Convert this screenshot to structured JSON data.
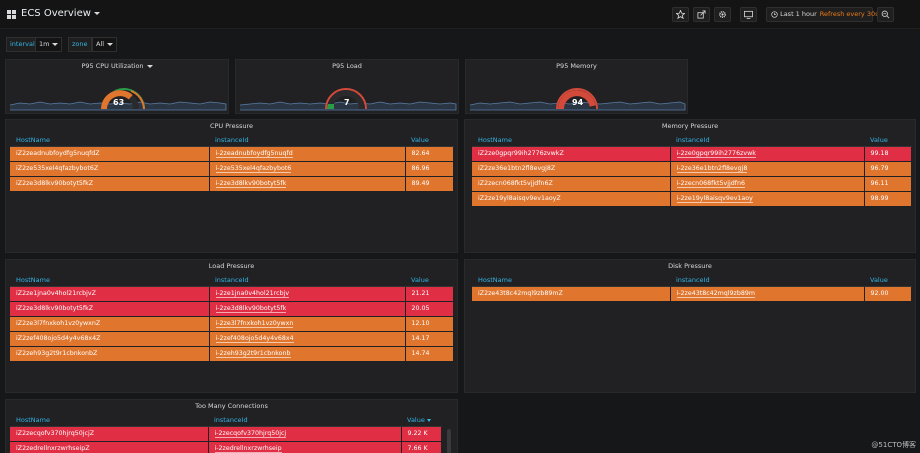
{
  "header": {
    "title": "ECS Overview",
    "time_range": "Last 1 hour",
    "refresh": "Refresh every 30s",
    "icons": [
      "star-icon",
      "share-icon",
      "gear-icon",
      "tv-icon",
      "clock-icon",
      "zoom-out-icon"
    ]
  },
  "variables": [
    {
      "label": "interval",
      "value": "1m"
    },
    {
      "label": "zone",
      "value": "All"
    }
  ],
  "gauges": [
    {
      "title": "P95 CPU Utilization",
      "value": "63",
      "level": 63,
      "color": "#e0752d",
      "has_menu": true
    },
    {
      "title": "P95 Load",
      "value": "7",
      "level": 7,
      "color": "#299c46",
      "has_menu": false
    },
    {
      "title": "P95 Memory",
      "value": "94",
      "level": 94,
      "color": "#d44a3a",
      "has_menu": false
    }
  ],
  "colors": {
    "orange": "#e0752d",
    "red": "#e02f44",
    "header_text": "#33b5e5",
    "panel_bg": "#212124"
  },
  "tables": {
    "cpu": {
      "title": "CPU Pressure",
      "columns": [
        "HostName",
        "instanceId",
        "Value"
      ],
      "rows": [
        {
          "host": "iZ2zeadnubfoydfg5nuqfdZ",
          "id": "i-2zeadnubfoydfg5nuqfd",
          "value": "82.64",
          "status": "orange"
        },
        {
          "host": "iZ2ze535xel4qfazbybot6Z",
          "id": "i-2ze535xel4qfazbybot6",
          "value": "86.96",
          "status": "orange"
        },
        {
          "host": "iZ2ze3d8lkv90botyt5fkZ",
          "id": "i-2ze3d8lkv90botyt5fk",
          "value": "89.49",
          "status": "orange"
        }
      ]
    },
    "memory": {
      "title": "Memory Pressure",
      "columns": [
        "HostName",
        "instanceId",
        "Value"
      ],
      "rows": [
        {
          "host": "iZ2ze0gpqr99ih2776zvwkZ",
          "id": "i-2ze0gpqr99ih2776zvwk",
          "value": "99.18",
          "status": "red"
        },
        {
          "host": "iZ2ze36e1btn2fl8evgj8Z",
          "id": "i-2ze36e1btn2fl8evgj8",
          "value": "96.79",
          "status": "orange"
        },
        {
          "host": "iZ2zecn068fkt5vjjdfn6Z",
          "id": "i-2zecn068fkt5vjjdfn6",
          "value": "96.11",
          "status": "orange"
        },
        {
          "host": "iZ2ze19yl8aisqv9ev1aoyZ",
          "id": "i-2ze19yl8aisqv9ev1aoy",
          "value": "98.99",
          "status": "orange"
        }
      ]
    },
    "load": {
      "title": "Load Pressure",
      "columns": [
        "HostName",
        "instanceId",
        "Value"
      ],
      "rows": [
        {
          "host": "iZ2ze1jna0v4hol21rcbjvZ",
          "id": "i-2ze1jna0v4hol21rcbjv",
          "value": "21.21",
          "status": "red"
        },
        {
          "host": "iZ2ze3d8lkv90botyt5fkZ",
          "id": "i-2ze3d8lkv90botyt5fk",
          "value": "20.05",
          "status": "red"
        },
        {
          "host": "iZ2ze3l7fnxkoh1vz0ywxnZ",
          "id": "i-2ze3l7fnxkoh1vz0ywxn",
          "value": "12.10",
          "status": "orange"
        },
        {
          "host": "iZ2zef408ojo5d4y4v68x4Z",
          "id": "i-2zef408ojo5d4y4v68x4",
          "value": "14.17",
          "status": "orange"
        },
        {
          "host": "iZ2zeh93g2t9r1cbnkonbZ",
          "id": "i-2zeh93g2t9r1cbnkonb",
          "value": "14.74",
          "status": "orange"
        }
      ]
    },
    "disk": {
      "title": "Disk Pressure",
      "columns": [
        "HostName",
        "instanceId",
        "Value"
      ],
      "rows": [
        {
          "host": "iZ2ze43t8c42mql9zb89mZ",
          "id": "i-2ze43t8c42mql9zb89m",
          "value": "92.00",
          "status": "orange"
        }
      ]
    },
    "connections": {
      "title": "Too Many Connections",
      "columns": [
        "HostName",
        "instanceId",
        "Value"
      ],
      "rows": [
        {
          "host": "iZ2zecqofv370hjrq50jcjZ",
          "id": "i-2zecqofv370hjrq50jcj",
          "value": "9.22 K",
          "status": "red"
        },
        {
          "host": "iZ2zedrellnxrzwrhseipZ",
          "id": "i-2zedrellnxrzwrhseip",
          "value": "7.66 K",
          "status": "red"
        }
      ]
    }
  },
  "watermark": "@51CTO博客"
}
